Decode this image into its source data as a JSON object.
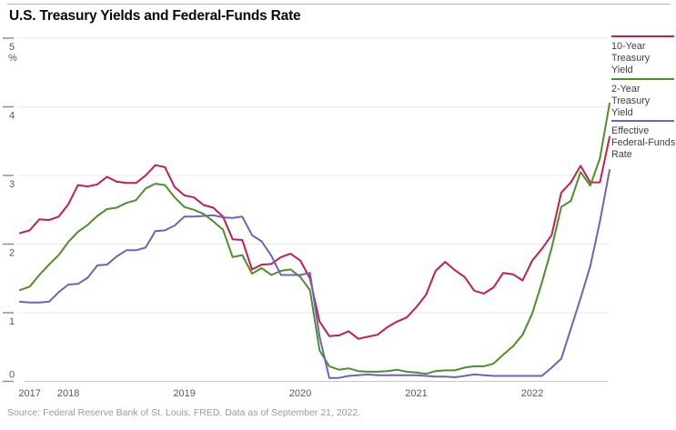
{
  "header": {
    "title": "U.S. Treasury Yields and Federal-Funds Rate"
  },
  "legend": [
    {
      "label": "10-Year Treasury Yield",
      "color": "#c41d52"
    },
    {
      "label": "2-Year Treasury Yield",
      "color": "#4e8f2c"
    },
    {
      "label": "Effective Federal-Funds Rate",
      "color": "#6f63b5"
    }
  ],
  "source": "Source: Federal Reserve Bank of St. Louis, FRED. Data as of September 21, 2022.",
  "chart_data": {
    "type": "line",
    "title": "U.S. Treasury Yields and Federal-Funds Rate",
    "ylabel_unit": "%",
    "ylim": [
      0,
      5
    ],
    "yticks": [
      "0",
      "1",
      "2",
      "3",
      "4",
      "5"
    ],
    "grid": "horizontal",
    "legend_position": "right",
    "x": [
      "2017-08",
      "2017-09",
      "2017-10",
      "2017-11",
      "2017-12",
      "2018-01",
      "2018-02",
      "2018-03",
      "2018-04",
      "2018-05",
      "2018-06",
      "2018-07",
      "2018-08",
      "2018-09",
      "2018-10",
      "2018-11",
      "2018-12",
      "2019-01",
      "2019-02",
      "2019-03",
      "2019-04",
      "2019-05",
      "2019-06",
      "2019-07",
      "2019-08",
      "2019-09",
      "2019-10",
      "2019-11",
      "2019-12",
      "2020-01",
      "2020-02",
      "2020-03",
      "2020-04",
      "2020-05",
      "2020-06",
      "2020-07",
      "2020-08",
      "2020-09",
      "2020-10",
      "2020-11",
      "2020-12",
      "2021-01",
      "2021-02",
      "2021-03",
      "2021-04",
      "2021-05",
      "2021-06",
      "2021-07",
      "2021-08",
      "2021-09",
      "2021-10",
      "2021-11",
      "2021-12",
      "2022-01",
      "2022-02",
      "2022-03",
      "2022-04",
      "2022-05",
      "2022-06",
      "2022-07",
      "2022-08",
      "2022-09"
    ],
    "x_ticks": [
      {
        "label": "2017",
        "index": 1
      },
      {
        "label": "2018",
        "index": 5
      },
      {
        "label": "2019",
        "index": 17
      },
      {
        "label": "2020",
        "index": 29
      },
      {
        "label": "2021",
        "index": 41
      },
      {
        "label": "2022",
        "index": 53
      }
    ],
    "series": [
      {
        "name": "10-Year Treasury Yield",
        "color": "#c41d52",
        "values": [
          2.16,
          2.2,
          2.36,
          2.35,
          2.4,
          2.58,
          2.86,
          2.84,
          2.87,
          2.98,
          2.91,
          2.89,
          2.89,
          3.0,
          3.15,
          3.12,
          2.83,
          2.71,
          2.68,
          2.57,
          2.53,
          2.4,
          2.07,
          2.06,
          1.63,
          1.7,
          1.71,
          1.81,
          1.86,
          1.76,
          1.5,
          0.87,
          0.66,
          0.67,
          0.73,
          0.62,
          0.65,
          0.68,
          0.79,
          0.87,
          0.93,
          1.08,
          1.26,
          1.61,
          1.74,
          1.62,
          1.52,
          1.32,
          1.28,
          1.37,
          1.58,
          1.56,
          1.47,
          1.76,
          1.93,
          2.13,
          2.75,
          2.9,
          3.14,
          2.9,
          2.9,
          3.56
        ]
      },
      {
        "name": "2-Year Treasury Yield",
        "color": "#4e8f2c",
        "values": [
          1.33,
          1.38,
          1.55,
          1.7,
          1.84,
          2.03,
          2.18,
          2.28,
          2.41,
          2.51,
          2.53,
          2.6,
          2.64,
          2.81,
          2.88,
          2.86,
          2.68,
          2.54,
          2.5,
          2.44,
          2.33,
          2.21,
          1.81,
          1.84,
          1.57,
          1.65,
          1.55,
          1.61,
          1.63,
          1.52,
          1.33,
          0.45,
          0.22,
          0.17,
          0.19,
          0.15,
          0.14,
          0.14,
          0.15,
          0.17,
          0.14,
          0.13,
          0.11,
          0.15,
          0.16,
          0.16,
          0.2,
          0.22,
          0.22,
          0.26,
          0.39,
          0.51,
          0.68,
          0.99,
          1.44,
          1.94,
          2.54,
          2.63,
          3.05,
          2.85,
          3.25,
          4.05
        ]
      },
      {
        "name": "Effective Federal-Funds Rate",
        "color": "#6f63b5",
        "values": [
          1.16,
          1.15,
          1.15,
          1.16,
          1.3,
          1.41,
          1.42,
          1.51,
          1.69,
          1.7,
          1.82,
          1.91,
          1.91,
          1.95,
          2.19,
          2.2,
          2.27,
          2.4,
          2.4,
          2.41,
          2.42,
          2.39,
          2.38,
          2.4,
          2.13,
          2.04,
          1.83,
          1.55,
          1.55,
          1.55,
          1.58,
          0.65,
          0.05,
          0.05,
          0.08,
          0.09,
          0.1,
          0.09,
          0.09,
          0.09,
          0.09,
          0.09,
          0.08,
          0.07,
          0.07,
          0.06,
          0.08,
          0.1,
          0.09,
          0.08,
          0.08,
          0.08,
          0.08,
          0.08,
          0.08,
          0.2,
          0.33,
          0.77,
          1.21,
          1.68,
          2.33,
          3.08
        ]
      }
    ]
  }
}
